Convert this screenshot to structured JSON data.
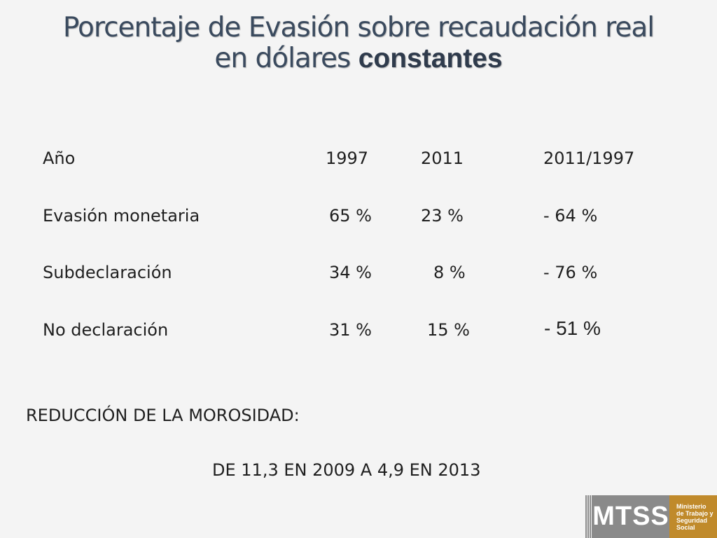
{
  "title": {
    "line1": "Porcentaje de Evasión sobre recaudación real",
    "line2_normal": "en dólares ",
    "line2_bold": "constantes"
  },
  "table": {
    "headers": [
      "Año",
      "1997",
      "2011",
      "2011/1997"
    ],
    "rows": [
      [
        "Evasión monetaria",
        "65 %",
        "23 %",
        "- 64 %"
      ],
      [
        "Subdeclaración",
        "34 %",
        "8 %",
        "- 76 %"
      ],
      [
        "No declaración",
        "31 %",
        "15 %",
        "- 51 %"
      ]
    ]
  },
  "reduccion": "REDUCCIÓN DE LA MOROSIDAD:",
  "morosidad_detail": "DE 11,3 EN 2009 A 4,9 EN 2013",
  "logo": {
    "acronym": "MTSS",
    "lines": [
      "Ministerio",
      "de Trabajo y",
      "Seguridad",
      "Social"
    ]
  }
}
